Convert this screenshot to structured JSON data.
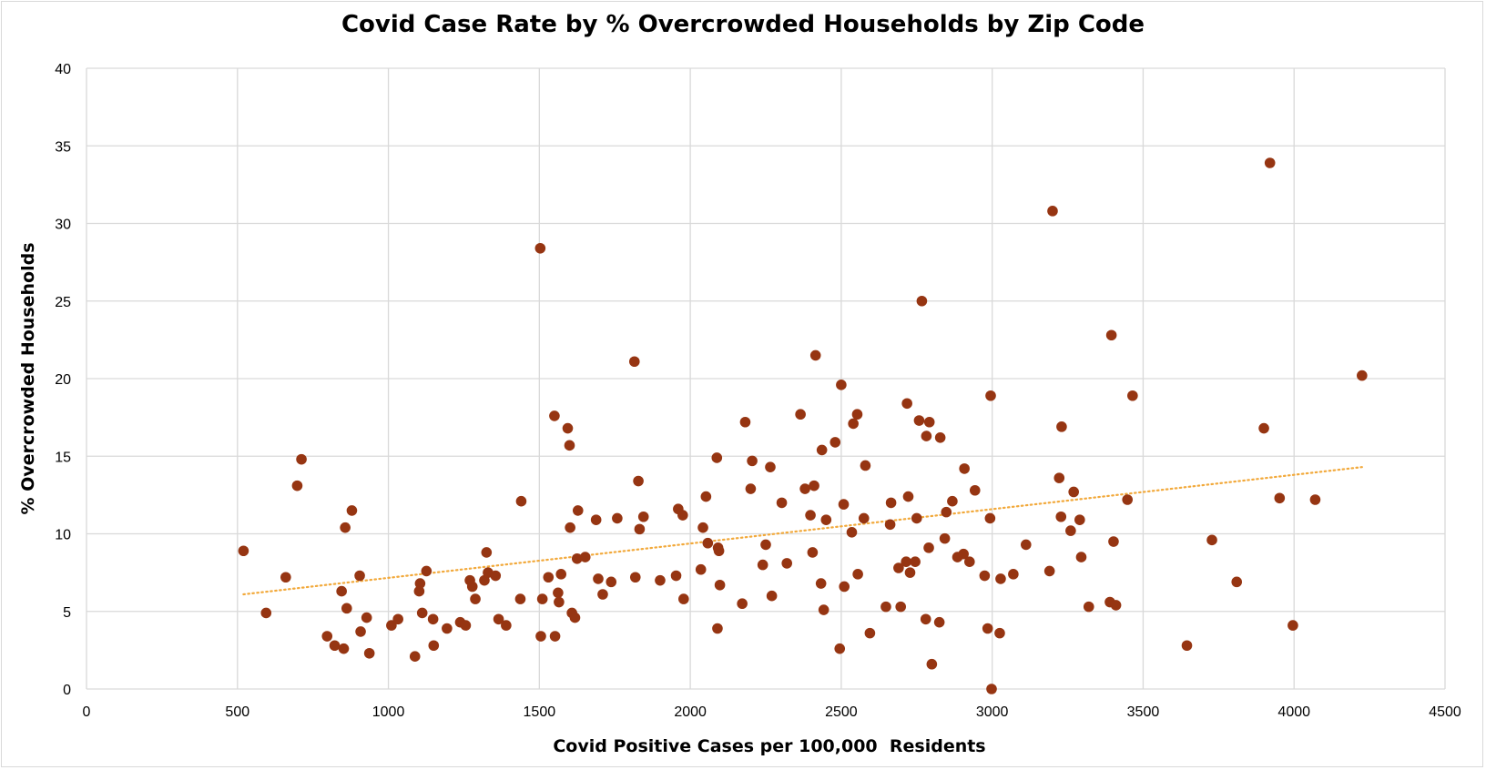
{
  "chart_data": {
    "type": "scatter",
    "title": "Covid Case Rate by % Overcrowded Households by Zip Code",
    "xlabel": "Covid Positive Cases per 100,000  Residents",
    "ylabel": "% Overcrowded Households",
    "xlim": [
      0,
      4500
    ],
    "ylim": [
      0,
      40
    ],
    "x_ticks": [
      0,
      500,
      1000,
      1500,
      2000,
      2500,
      3000,
      3500,
      4000,
      4500
    ],
    "y_ticks": [
      0,
      5,
      10,
      15,
      20,
      25,
      30,
      35,
      40
    ],
    "grid": true,
    "legend": "none",
    "colors": {
      "points": "#963512",
      "trendline": "#f2a93b",
      "grid": "#d9d9d9"
    },
    "trendline": {
      "type": "linear",
      "from": [
        520,
        6.1
      ],
      "to": [
        4225,
        14.3
      ],
      "style": "dotted"
    },
    "points": [
      [
        520,
        8.9
      ],
      [
        595,
        4.9
      ],
      [
        660,
        7.2
      ],
      [
        698,
        13.1
      ],
      [
        712,
        14.8
      ],
      [
        797,
        3.4
      ],
      [
        822,
        2.8
      ],
      [
        845,
        6.3
      ],
      [
        852,
        2.6
      ],
      [
        857,
        10.4
      ],
      [
        862,
        5.2
      ],
      [
        879,
        11.5
      ],
      [
        905,
        7.3
      ],
      [
        908,
        3.7
      ],
      [
        928,
        4.6
      ],
      [
        937,
        2.3
      ],
      [
        1010,
        4.1
      ],
      [
        1032,
        4.5
      ],
      [
        1088,
        2.1
      ],
      [
        1102,
        6.3
      ],
      [
        1105,
        6.8
      ],
      [
        1112,
        4.9
      ],
      [
        1126,
        7.6
      ],
      [
        1148,
        4.5
      ],
      [
        1150,
        2.8
      ],
      [
        1194,
        3.9
      ],
      [
        1238,
        4.3
      ],
      [
        1256,
        4.1
      ],
      [
        1270,
        7.0
      ],
      [
        1278,
        6.6
      ],
      [
        1288,
        5.8
      ],
      [
        1318,
        7.0
      ],
      [
        1325,
        8.8
      ],
      [
        1330,
        7.5
      ],
      [
        1355,
        7.3
      ],
      [
        1365,
        4.5
      ],
      [
        1390,
        4.1
      ],
      [
        1437,
        5.8
      ],
      [
        1440,
        12.1
      ],
      [
        1503,
        28.4
      ],
      [
        1505,
        3.4
      ],
      [
        1510,
        5.8
      ],
      [
        1530,
        7.2
      ],
      [
        1550,
        17.6
      ],
      [
        1552,
        3.4
      ],
      [
        1562,
        6.2
      ],
      [
        1565,
        5.6
      ],
      [
        1572,
        7.4
      ],
      [
        1594,
        16.8
      ],
      [
        1600,
        15.7
      ],
      [
        1602,
        10.4
      ],
      [
        1608,
        4.9
      ],
      [
        1618,
        4.6
      ],
      [
        1625,
        8.4
      ],
      [
        1628,
        11.5
      ],
      [
        1652,
        8.5
      ],
      [
        1688,
        10.9
      ],
      [
        1695,
        7.1
      ],
      [
        1710,
        6.1
      ],
      [
        1738,
        6.9
      ],
      [
        1758,
        11.0
      ],
      [
        1815,
        21.1
      ],
      [
        1818,
        7.2
      ],
      [
        1828,
        13.4
      ],
      [
        1832,
        10.3
      ],
      [
        1845,
        11.1
      ],
      [
        1900,
        7.0
      ],
      [
        1953,
        7.3
      ],
      [
        1960,
        11.6
      ],
      [
        1975,
        11.2
      ],
      [
        1978,
        5.8
      ],
      [
        2035,
        7.7
      ],
      [
        2042,
        10.4
      ],
      [
        2052,
        12.4
      ],
      [
        2058,
        9.4
      ],
      [
        2088,
        14.9
      ],
      [
        2090,
        3.9
      ],
      [
        2092,
        9.1
      ],
      [
        2095,
        8.9
      ],
      [
        2098,
        6.7
      ],
      [
        2172,
        5.5
      ],
      [
        2182,
        17.2
      ],
      [
        2200,
        12.9
      ],
      [
        2205,
        14.7
      ],
      [
        2240,
        8.0
      ],
      [
        2250,
        9.3
      ],
      [
        2265,
        14.3
      ],
      [
        2270,
        6.0
      ],
      [
        2303,
        12.0
      ],
      [
        2320,
        8.1
      ],
      [
        2365,
        17.7
      ],
      [
        2380,
        12.9
      ],
      [
        2398,
        11.2
      ],
      [
        2405,
        8.8
      ],
      [
        2410,
        13.1
      ],
      [
        2415,
        21.5
      ],
      [
        2433,
        6.8
      ],
      [
        2436,
        15.4
      ],
      [
        2442,
        5.1
      ],
      [
        2450,
        10.9
      ],
      [
        2480,
        15.9
      ],
      [
        2495,
        2.6
      ],
      [
        2500,
        19.6
      ],
      [
        2508,
        11.9
      ],
      [
        2510,
        6.6
      ],
      [
        2535,
        10.1
      ],
      [
        2540,
        17.1
      ],
      [
        2553,
        17.7
      ],
      [
        2555,
        7.4
      ],
      [
        2575,
        11.0
      ],
      [
        2580,
        14.4
      ],
      [
        2595,
        3.6
      ],
      [
        2648,
        5.3
      ],
      [
        2662,
        10.6
      ],
      [
        2665,
        12.0
      ],
      [
        2690,
        7.8
      ],
      [
        2697,
        5.3
      ],
      [
        2715,
        8.2
      ],
      [
        2718,
        18.4
      ],
      [
        2722,
        12.4
      ],
      [
        2728,
        7.5
      ],
      [
        2745,
        8.2
      ],
      [
        2750,
        11.0
      ],
      [
        2758,
        17.3
      ],
      [
        2767,
        25.0
      ],
      [
        2780,
        4.5
      ],
      [
        2782,
        16.3
      ],
      [
        2790,
        9.1
      ],
      [
        2792,
        17.2
      ],
      [
        2800,
        1.6
      ],
      [
        2825,
        4.3
      ],
      [
        2828,
        16.2
      ],
      [
        2843,
        9.7
      ],
      [
        2848,
        11.4
      ],
      [
        2868,
        12.1
      ],
      [
        2885,
        8.5
      ],
      [
        2905,
        8.7
      ],
      [
        2908,
        14.2
      ],
      [
        2925,
        8.2
      ],
      [
        2943,
        12.8
      ],
      [
        2975,
        7.3
      ],
      [
        2985,
        3.9
      ],
      [
        2993,
        11.0
      ],
      [
        2995,
        18.9
      ],
      [
        2998,
        0.0
      ],
      [
        3025,
        3.6
      ],
      [
        3028,
        7.1
      ],
      [
        3070,
        7.4
      ],
      [
        3112,
        9.3
      ],
      [
        3190,
        7.6
      ],
      [
        3200,
        30.8
      ],
      [
        3222,
        13.6
      ],
      [
        3228,
        11.1
      ],
      [
        3230,
        16.9
      ],
      [
        3260,
        10.2
      ],
      [
        3270,
        12.7
      ],
      [
        3290,
        10.9
      ],
      [
        3295,
        8.5
      ],
      [
        3320,
        5.3
      ],
      [
        3390,
        5.6
      ],
      [
        3395,
        22.8
      ],
      [
        3402,
        9.5
      ],
      [
        3410,
        5.4
      ],
      [
        3448,
        12.2
      ],
      [
        3465,
        18.9
      ],
      [
        3645,
        2.8
      ],
      [
        3728,
        9.6
      ],
      [
        3810,
        6.9
      ],
      [
        3900,
        16.8
      ],
      [
        3920,
        33.9
      ],
      [
        3952,
        12.3
      ],
      [
        3996,
        4.1
      ],
      [
        4070,
        12.2
      ],
      [
        4225,
        20.2
      ]
    ]
  }
}
